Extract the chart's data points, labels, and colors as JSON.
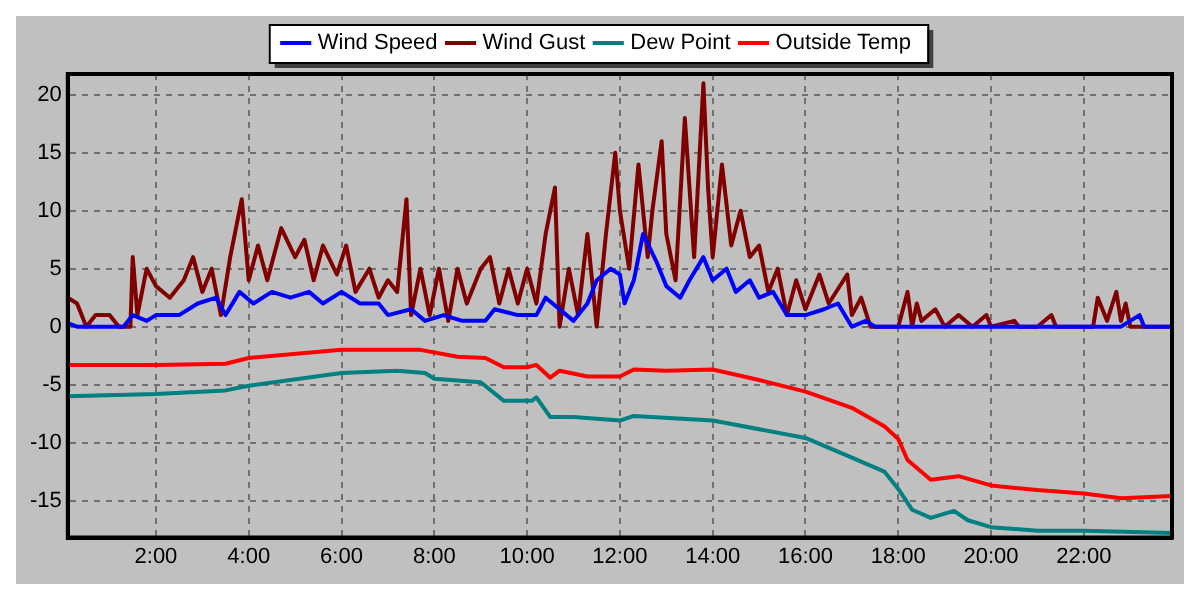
{
  "chart_data": {
    "type": "line",
    "xlim": [
      0.1,
      23.9
    ],
    "ylim": [
      -18.2,
      21.8
    ],
    "xticks": [
      {
        "value": 2,
        "label": "2:00"
      },
      {
        "value": 4,
        "label": "4:00"
      },
      {
        "value": 6,
        "label": "6:00"
      },
      {
        "value": 8,
        "label": "8:00"
      },
      {
        "value": 10,
        "label": "10:00"
      },
      {
        "value": 12,
        "label": "12:00"
      },
      {
        "value": 14,
        "label": "14:00"
      },
      {
        "value": 16,
        "label": "16:00"
      },
      {
        "value": 18,
        "label": "18:00"
      },
      {
        "value": 20,
        "label": "20:00"
      },
      {
        "value": 22,
        "label": "22:00"
      }
    ],
    "yticks": [
      -15,
      -10,
      -5,
      0,
      5,
      10,
      15,
      20
    ],
    "grid": true,
    "legend": "top",
    "marker": "none",
    "line_style": "solid",
    "series": [
      {
        "name": "Wind Speed",
        "color": "#0000ff",
        "x": [
          0.1,
          0.3,
          1.3,
          1.5,
          1.8,
          2.0,
          2.5,
          2.9,
          3.3,
          3.5,
          3.8,
          4.1,
          4.5,
          4.9,
          5.3,
          5.6,
          6.0,
          6.4,
          6.8,
          7.0,
          7.5,
          7.8,
          8.2,
          8.6,
          9.1,
          9.3,
          9.8,
          10.2,
          10.4,
          10.7,
          11.0,
          11.3,
          11.5,
          11.8,
          12.0,
          12.1,
          12.3,
          12.5,
          12.8,
          13.0,
          13.3,
          13.5,
          13.8,
          14.0,
          14.3,
          14.5,
          14.8,
          15.0,
          15.3,
          15.6,
          16.0,
          16.4,
          16.7,
          17.0,
          17.3,
          17.5,
          22.8,
          23.2,
          23.3,
          23.9
        ],
        "values": [
          0.3,
          0,
          0,
          1,
          0.5,
          1,
          1,
          2,
          2.5,
          1,
          3,
          2,
          3,
          2.5,
          3,
          2,
          3,
          2,
          2,
          1,
          1.5,
          0.5,
          1,
          0.5,
          0.5,
          1.5,
          1,
          1,
          2.5,
          1.5,
          0.5,
          2,
          4,
          5,
          4.5,
          2,
          4,
          8,
          5.5,
          3.5,
          2.5,
          4,
          6,
          4,
          5,
          3,
          4,
          2.5,
          3,
          1,
          1,
          1.5,
          2,
          0,
          0.5,
          0,
          0,
          1,
          0,
          0
        ]
      },
      {
        "name": "Wind Gust",
        "color": "#800000",
        "x": [
          0.1,
          0.3,
          0.5,
          0.7,
          1.0,
          1.2,
          1.45,
          1.5,
          1.6,
          1.8,
          2.0,
          2.3,
          2.6,
          2.8,
          3.0,
          3.2,
          3.4,
          3.6,
          3.85,
          4.0,
          4.2,
          4.4,
          4.7,
          5.0,
          5.2,
          5.4,
          5.6,
          5.9,
          6.1,
          6.3,
          6.6,
          6.8,
          7.0,
          7.2,
          7.4,
          7.5,
          7.7,
          7.9,
          8.1,
          8.3,
          8.5,
          8.7,
          9.0,
          9.2,
          9.4,
          9.6,
          9.8,
          10.0,
          10.2,
          10.4,
          10.6,
          10.7,
          10.9,
          11.1,
          11.3,
          11.5,
          11.7,
          11.9,
          12.0,
          12.2,
          12.4,
          12.6,
          12.7,
          12.9,
          13.0,
          13.2,
          13.4,
          13.6,
          13.8,
          13.9,
          14.0,
          14.2,
          14.4,
          14.6,
          14.8,
          15.0,
          15.2,
          15.4,
          15.6,
          15.8,
          16.0,
          16.3,
          16.5,
          16.9,
          17.0,
          17.2,
          17.4,
          18.0,
          18.2,
          18.3,
          18.4,
          18.5,
          18.8,
          19.0,
          19.3,
          19.6,
          19.9,
          20.0,
          20.5,
          20.6,
          21.0,
          21.3,
          21.4,
          22.2,
          22.3,
          22.5,
          22.7,
          22.8,
          22.9,
          23.0,
          23.9
        ],
        "values": [
          2.5,
          2,
          0,
          1,
          1,
          0,
          0,
          6,
          1,
          5,
          3.5,
          2.5,
          4,
          6,
          3,
          5,
          1,
          6,
          11,
          4,
          7,
          4,
          8.5,
          6,
          7.5,
          4,
          7,
          4.5,
          7,
          3,
          5,
          2.5,
          4,
          3,
          11,
          1,
          5,
          1,
          5,
          0.5,
          5,
          2,
          5,
          6,
          2,
          5,
          2,
          5,
          2,
          8,
          12,
          0,
          5,
          1,
          8,
          0,
          8,
          15,
          10,
          5,
          14,
          6,
          10,
          16,
          8,
          4,
          18,
          6,
          21,
          12,
          6,
          14,
          7,
          10,
          6,
          7,
          3,
          5,
          1,
          4,
          1.5,
          4.5,
          2,
          4.5,
          1,
          2.5,
          0,
          0,
          3,
          0,
          2,
          0.5,
          1.5,
          0,
          1,
          0,
          1,
          0,
          0.5,
          0,
          0,
          1,
          0,
          0,
          2.5,
          0.5,
          3,
          0.5,
          2,
          0,
          0
        ]
      },
      {
        "name": "Dew Point",
        "color": "#008080",
        "x": [
          0.1,
          2,
          3.5,
          4,
          6,
          7.2,
          7.8,
          8,
          9,
          9.5,
          10.1,
          10.2,
          10.5,
          11,
          12,
          12.3,
          14,
          16,
          17,
          17.7,
          18,
          18.3,
          18.7,
          19.2,
          19.5,
          20,
          21,
          22,
          23.9
        ],
        "values": [
          -6,
          -5.8,
          -5.5,
          -5.1,
          -4,
          -3.8,
          -4,
          -4.5,
          -4.8,
          -6.4,
          -6.4,
          -6.1,
          -7.8,
          -7.8,
          -8.1,
          -7.7,
          -8.1,
          -9.6,
          -11.3,
          -12.5,
          -14,
          -15.8,
          -16.5,
          -15.9,
          -16.7,
          -17.3,
          -17.6,
          -17.6,
          -17.8
        ]
      },
      {
        "name": "Outside Temp",
        "color": "#ff0000",
        "x": [
          0.1,
          2,
          3.5,
          4,
          6,
          7.7,
          8.5,
          9.1,
          9.5,
          10.0,
          10.2,
          10.5,
          10.7,
          11.3,
          12,
          12.3,
          13,
          14,
          15,
          16,
          17,
          17.7,
          18,
          18.2,
          18.7,
          19.3,
          20,
          21,
          22,
          22.8,
          23.9
        ],
        "values": [
          -3.3,
          -3.3,
          -3.2,
          -2.7,
          -2,
          -2,
          -2.6,
          -2.7,
          -3.5,
          -3.5,
          -3.3,
          -4.4,
          -3.8,
          -4.3,
          -4.3,
          -3.7,
          -3.8,
          -3.7,
          -4.6,
          -5.6,
          -7,
          -8.6,
          -9.7,
          -11.5,
          -13.2,
          -12.9,
          -13.7,
          -14.1,
          -14.4,
          -14.8,
          -14.6
        ]
      }
    ]
  }
}
